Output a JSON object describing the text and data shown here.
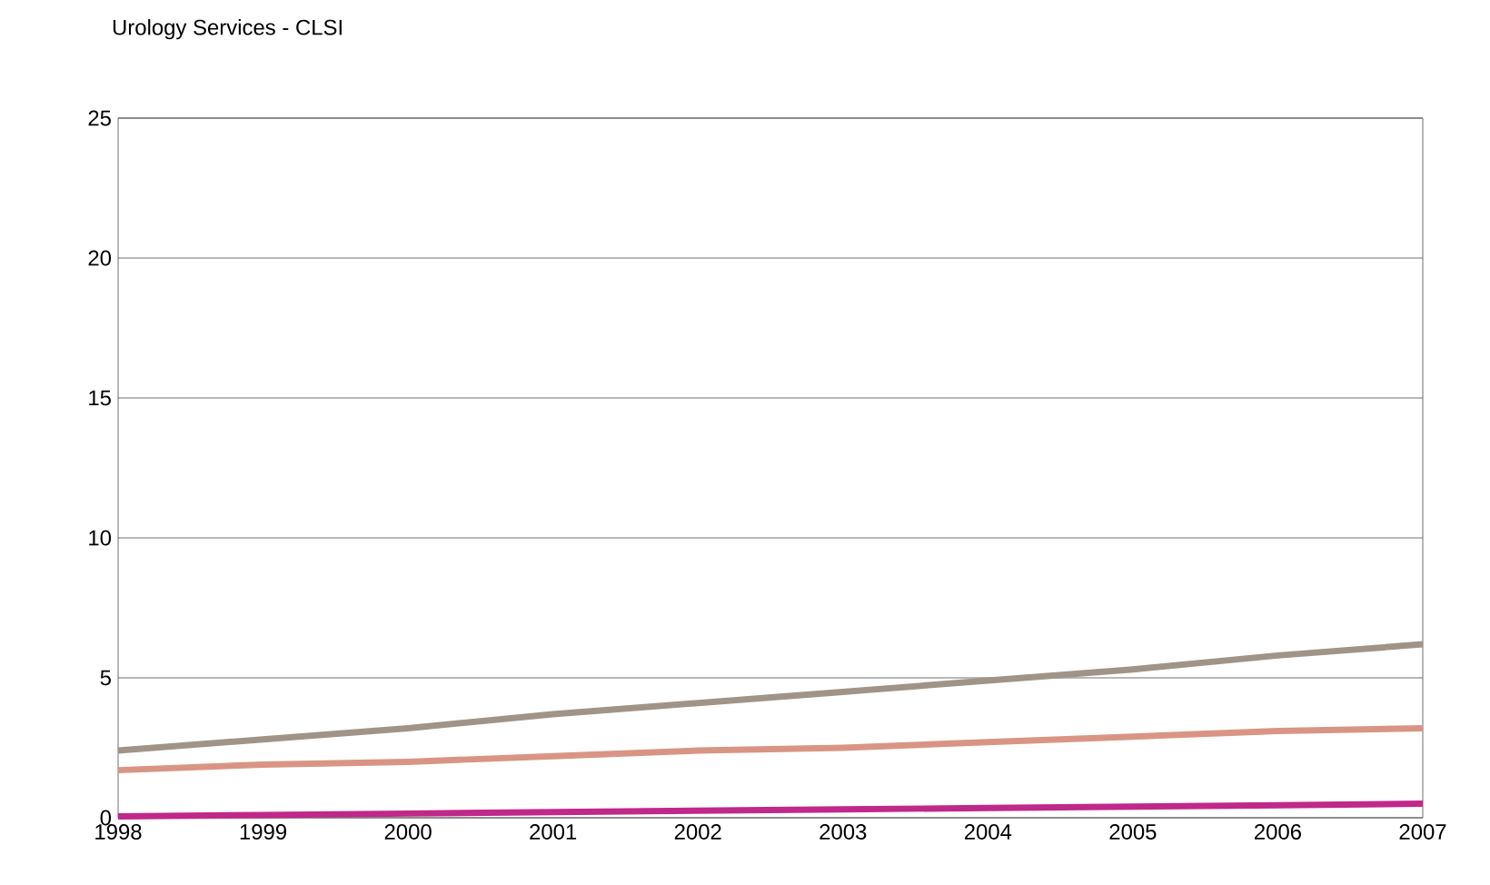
{
  "chart_data": {
    "type": "line",
    "title": "Urology Services - CLSI",
    "categories": [
      "1998",
      "1999",
      "2000",
      "2001",
      "2002",
      "2003",
      "2004",
      "2005",
      "2006",
      "2007"
    ],
    "series": [
      {
        "color": "#a09488",
        "values": [
          2.4,
          2.8,
          3.2,
          3.7,
          4.1,
          4.5,
          4.9,
          5.3,
          5.8,
          6.2
        ]
      },
      {
        "color": "#d99584",
        "values": [
          1.7,
          1.9,
          2.0,
          2.2,
          2.4,
          2.5,
          2.7,
          2.9,
          3.1,
          3.2
        ]
      },
      {
        "color": "#c0288a",
        "values": [
          0.05,
          0.1,
          0.15,
          0.2,
          0.25,
          0.3,
          0.35,
          0.4,
          0.45,
          0.5
        ]
      }
    ],
    "ylim": [
      0,
      25
    ],
    "yticks": [
      0,
      5,
      10,
      15,
      20,
      25
    ],
    "grid": "y",
    "marker": "none",
    "line_style": "solid"
  }
}
